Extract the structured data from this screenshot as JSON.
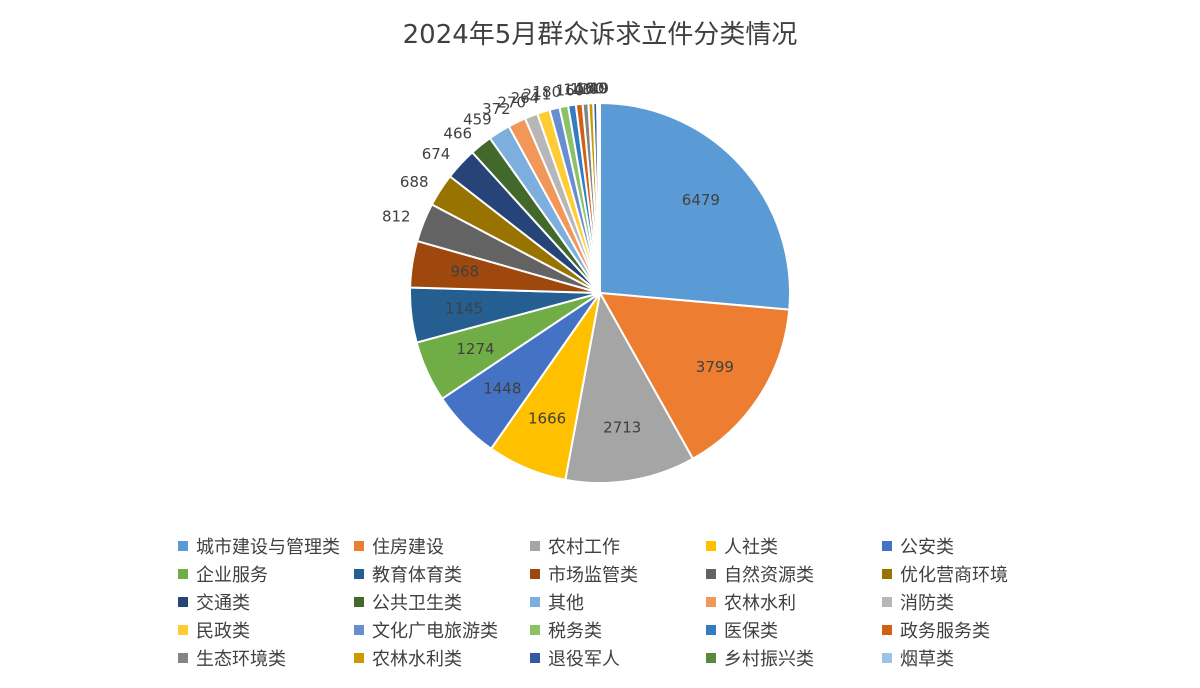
{
  "chart_data": {
    "type": "pie",
    "title": "2024年5月群众诉求立件分类情况",
    "legend_position": "bottom",
    "categories": [
      "城市建设与管理类",
      "住房建设",
      "农村工作",
      "人社类",
      "公安类",
      "企业服务",
      "教育体育类",
      "市场监管类",
      "自然资源类",
      "优化营商环境",
      "交通类",
      "公共卫生类",
      "其他",
      "农林水利",
      "消防类",
      "民政类",
      "文化广电旅游类",
      "税务类",
      "医保类",
      "政务服务类",
      "生态环境类",
      "农林水利类",
      "退役军人",
      "乡村振兴类",
      "烟草类"
    ],
    "values": [
      6479,
      3799,
      2713,
      1666,
      1448,
      1274,
      1145,
      968,
      812,
      688,
      674,
      466,
      459,
      372,
      270,
      264,
      211,
      180,
      160,
      140,
      120,
      100,
      80,
      40,
      19
    ],
    "data_labels": [
      "6479",
      "3799",
      "2713",
      "1666",
      "1448",
      "1274",
      "1145",
      "968",
      "812",
      "688",
      "674",
      "466",
      "459",
      "372",
      "270",
      "264",
      "211",
      "180",
      "160",
      "140",
      "120",
      "100",
      "80",
      "40",
      "19"
    ],
    "colors": [
      "#5B9BD5",
      "#ED7D31",
      "#A5A5A5",
      "#FFC000",
      "#4472C4",
      "#70AD47",
      "#255E91",
      "#9E480E",
      "#636363",
      "#997300",
      "#264478",
      "#43682B",
      "#7CAFDD",
      "#F1975A",
      "#B7B7B7",
      "#FFCD33",
      "#698ED0",
      "#8CC168",
      "#327DC2",
      "#D26012",
      "#848484",
      "#CC9A00",
      "#335AA1",
      "#5A8A39",
      "#9DC3E6"
    ]
  }
}
